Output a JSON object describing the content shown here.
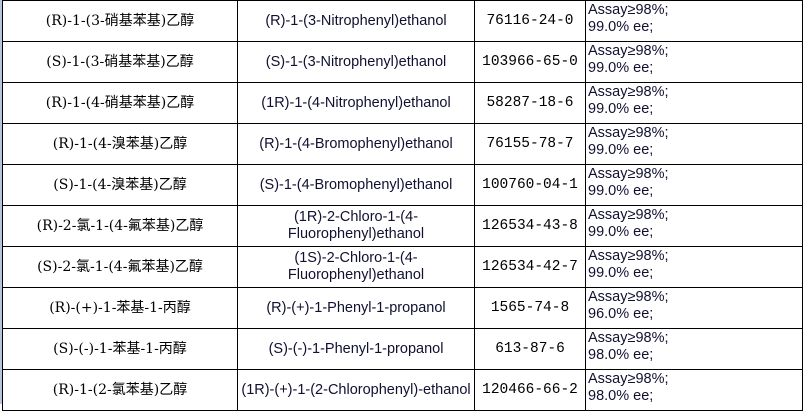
{
  "table": {
    "rows": [
      {
        "cn": "(R)-1-(3-硝基苯基)乙醇",
        "en": "(R)-1-(3-Nitrophenyl)ethanol",
        "cas": "76116-24-0",
        "assay": "Assay≥98%;",
        "ee": "99.0% ee;"
      },
      {
        "cn": "(S)-1-(3-硝基苯基)乙醇",
        "en": "(S)-1-(3-Nitrophenyl)ethanol",
        "cas": "103966-65-0",
        "assay": "Assay≥98%;",
        "ee": "99.0% ee;"
      },
      {
        "cn": "(R)-1-(4-硝基苯基)乙醇",
        "en": "(1R)-1-(4-Nitrophenyl)ethanol",
        "cas": "58287-18-6",
        "assay": "Assay≥98%;",
        "ee": "99.0% ee;"
      },
      {
        "cn": "(R)-1-(4-溴苯基)乙醇",
        "en": "(R)-1-(4-Bromophenyl)ethanol",
        "cas": "76155-78-7",
        "assay": "Assay≥98%;",
        "ee": "99.0% ee;"
      },
      {
        "cn": "(S)-1-(4-溴苯基)乙醇",
        "en": "(S)-1-(4-Bromophenyl)ethanol",
        "cas": "100760-04-1",
        "assay": "Assay≥98%;",
        "ee": "99.0% ee;"
      },
      {
        "cn": "(R)-2-氯-1-(4-氟苯基)乙醇",
        "en": "(1R)-2-Chloro-1-(4-Fluorophenyl)ethanol",
        "cas": "126534-43-8",
        "assay": "Assay≥98%;",
        "ee": "99.0% ee;"
      },
      {
        "cn": "(S)-2-氯-1-(4-氟苯基)乙醇",
        "en": "(1S)-2-Chloro-1-(4-Fluorophenyl)ethanol",
        "cas": "126534-42-7",
        "assay": "Assay≥98%;",
        "ee": "99.0% ee;"
      },
      {
        "cn": "(R)-(+)-1-苯基-1-丙醇",
        "en": "(R)-(+)-1-Phenyl-1-propanol",
        "cas": "1565-74-8",
        "assay": "Assay≥98%;",
        "ee": "96.0% ee;"
      },
      {
        "cn": "(S)-(-)-1-苯基-1-丙醇",
        "en": "(S)-(-)-1-Phenyl-1-propanol",
        "cas": "613-87-6",
        "assay": "Assay≥98%;",
        "ee": "98.0% ee;"
      },
      {
        "cn": "(R)-1-(2-氯苯基)乙醇",
        "en": "(1R)-(+)-1-(2-Chlorophenyl)-ethanol",
        "cas": "120466-66-2",
        "assay": "Assay≥98%;",
        "ee": "98.0% ee;"
      }
    ]
  }
}
